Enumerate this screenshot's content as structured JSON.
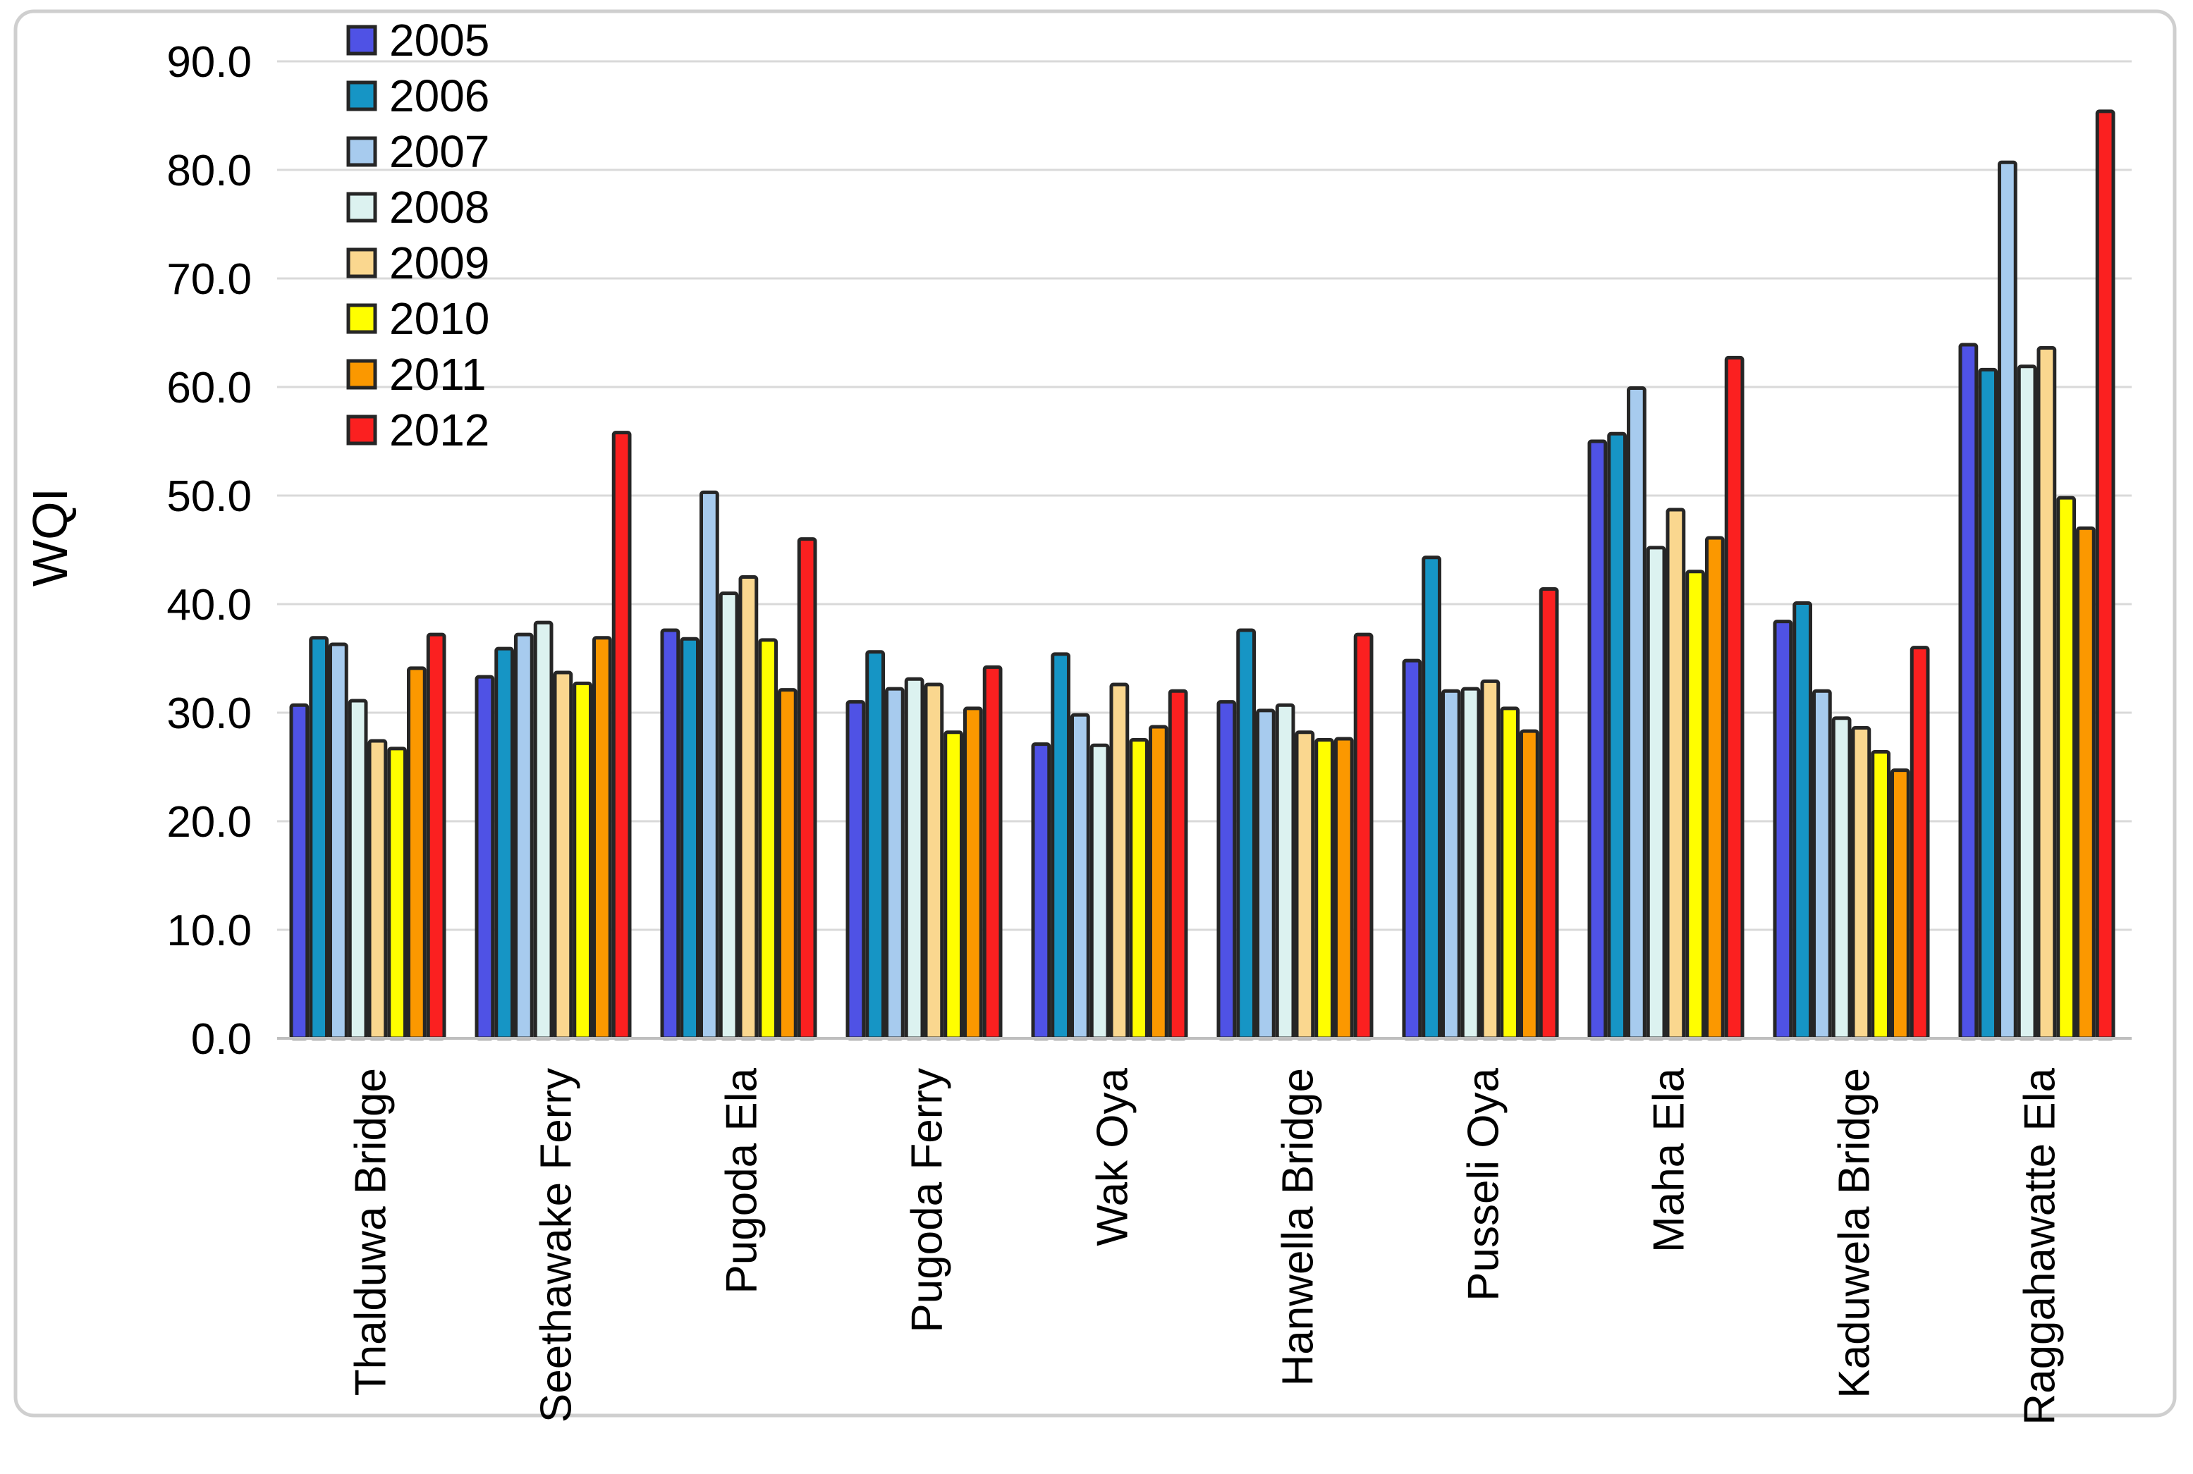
{
  "figure": {
    "background": "#ffffff",
    "border_color": "#cfcfcf",
    "axis_line_color": "#bfbfbf",
    "gridline_color": "#d9d9d9",
    "bar_outline_color": "#262626"
  },
  "chart_data": {
    "type": "bar",
    "title": "",
    "xlabel": "",
    "ylabel": "WQI",
    "ylim": [
      0,
      90
    ],
    "ytick_step": 10,
    "ytick_labels": [
      "0.0",
      "10.0",
      "20.0",
      "30.0",
      "40.0",
      "50.0",
      "60.0",
      "70.0",
      "80.0",
      "90.0"
    ],
    "grid": true,
    "legend_position": "top-left",
    "categories": [
      "Thalduwa Bridge",
      "Seethawake Ferry",
      "Pugoda Ela",
      "Pugoda Ferry",
      "Wak Oya",
      "Hanwella Bridge",
      "Pusseli Oya",
      "Maha Ela",
      "Kaduwela Bridge",
      "Raggahawatte Ela"
    ],
    "series": [
      {
        "name": "2005",
        "color": "#4F52E5",
        "values": [
          30.7,
          33.3,
          37.6,
          31.0,
          27.1,
          31.0,
          34.8,
          55.0,
          38.4,
          63.9
        ]
      },
      {
        "name": "2006",
        "color": "#1695C5",
        "values": [
          36.9,
          35.9,
          36.8,
          35.6,
          35.4,
          37.6,
          44.3,
          55.7,
          40.1,
          61.6
        ]
      },
      {
        "name": "2007",
        "color": "#A7CBEE",
        "values": [
          36.3,
          37.2,
          50.3,
          32.2,
          29.8,
          30.2,
          32.0,
          59.9,
          32.0,
          80.7
        ]
      },
      {
        "name": "2008",
        "color": "#DCF2F0",
        "values": [
          31.1,
          38.3,
          41.0,
          33.1,
          27.0,
          30.7,
          32.2,
          45.2,
          29.5,
          61.9
        ]
      },
      {
        "name": "2009",
        "color": "#FAD78F",
        "values": [
          27.4,
          33.7,
          42.5,
          32.6,
          32.6,
          28.2,
          32.9,
          48.7,
          28.6,
          63.6
        ]
      },
      {
        "name": "2010",
        "color": "#FFFE00",
        "values": [
          26.7,
          32.7,
          36.7,
          28.2,
          27.5,
          27.5,
          30.4,
          43.0,
          26.4,
          49.8
        ]
      },
      {
        "name": "2011",
        "color": "#FB9800",
        "values": [
          34.1,
          36.9,
          32.1,
          30.4,
          28.7,
          27.6,
          28.3,
          46.1,
          24.7,
          47.0
        ]
      },
      {
        "name": "2012",
        "color": "#FB2020",
        "values": [
          37.2,
          55.8,
          46.0,
          34.2,
          32.0,
          37.2,
          41.4,
          62.7,
          36.0,
          85.4
        ]
      }
    ]
  }
}
